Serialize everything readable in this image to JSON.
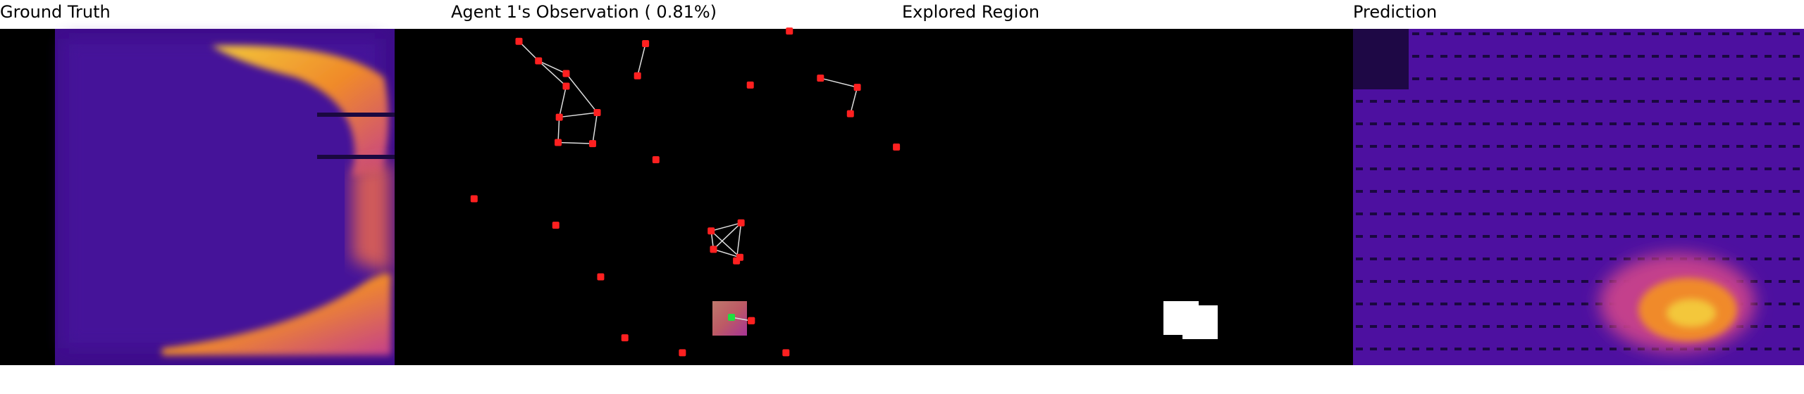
{
  "panels": [
    {
      "title": "Ground Truth"
    },
    {
      "title": "Agent 1's Observation ( 0.81%)"
    },
    {
      "title": "Explored Region"
    },
    {
      "title": "Prediction"
    }
  ]
}
